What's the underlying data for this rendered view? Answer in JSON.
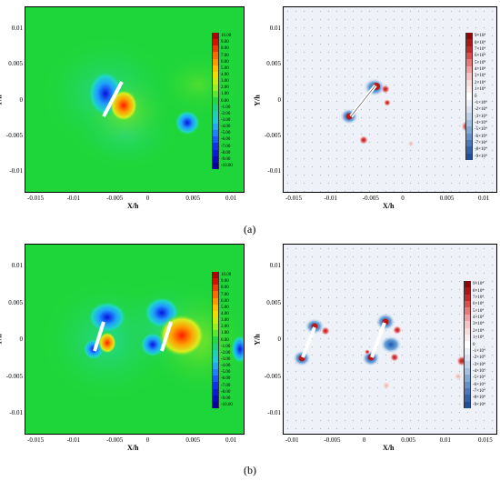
{
  "figure": {
    "captions": [
      "(a)",
      "(b)"
    ],
    "panels": [
      {
        "id": "a-left",
        "xlabel": "X/h",
        "ylabel": "Y/h",
        "xticks": [
          "-0.015",
          "-0.01",
          "-0.005",
          "0",
          "0.005",
          "0.01"
        ],
        "yticks": [
          "0.01",
          "0.005",
          "0",
          "-0.005",
          "-0.01"
        ],
        "legend": [
          "10.00",
          "9.00",
          "8.00",
          "7.00",
          "6.00",
          "5.00",
          "4.00",
          "3.00",
          "2.00",
          "1.00",
          "0.00",
          "-1.00",
          "-2.00",
          "-3.00",
          "-4.00",
          "-5.00",
          "-6.00",
          "-7.00",
          "-8.00",
          "-9.00",
          "-10.00"
        ]
      },
      {
        "id": "a-right",
        "xlabel": "X/h",
        "ylabel": "Y/h",
        "xticks": [
          "-0.015",
          "-0.01",
          "-0.005",
          "0",
          "0.005",
          "0.01"
        ],
        "yticks": [
          "0.01",
          "0.005",
          "0",
          "-0.005",
          "-0.01"
        ],
        "legend": [
          "9×10⁴",
          "8×10⁴",
          "7×10⁴",
          "6×10⁴",
          "5×10⁴",
          "4×10⁴",
          "3×10⁴",
          "2×10⁴",
          "1×10⁴",
          "0",
          "-1×10⁴",
          "-2×10⁴",
          "-3×10⁴",
          "-4×10⁴",
          "-5×10⁴",
          "-6×10⁴",
          "-7×10⁴",
          "-8×10⁴",
          "-9×10⁴"
        ]
      },
      {
        "id": "b-left",
        "xlabel": "X/h",
        "ylabel": "Y/h",
        "xticks": [
          "-0.015",
          "-0.01",
          "-0.005",
          "0",
          "0.005",
          "0.01"
        ],
        "yticks": [
          "0.01",
          "0.005",
          "0",
          "-0.005",
          "-0.01"
        ],
        "legend": [
          "10.00",
          "9.00",
          "8.00",
          "7.00",
          "6.00",
          "5.00",
          "4.00",
          "3.00",
          "2.00",
          "1.00",
          "0.00",
          "-1.00",
          "-2.00",
          "-3.00",
          "-4.00",
          "-5.00",
          "-6.00",
          "-7.00",
          "-8.00",
          "-9.00",
          "-10.00"
        ]
      },
      {
        "id": "b-right",
        "xlabel": "X/h",
        "ylabel": "Y/h",
        "xticks": [
          "-0.01",
          "-0.005",
          "0",
          "0.005",
          "0.01",
          "0.015"
        ],
        "yticks": [
          "0.01",
          "0.005",
          "0",
          "-0.005",
          "-0.01"
        ],
        "legend": [
          "9×10⁴",
          "8×10⁴",
          "7×10⁴",
          "6×10⁴",
          "5×10⁴",
          "4×10⁴",
          "3×10⁴",
          "2×10⁴",
          "1×10⁴",
          "0",
          "-1×10⁴",
          "-2×10⁴",
          "-3×10⁴",
          "-4×10⁴",
          "-5×10⁴",
          "-6×10⁴",
          "-7×10⁴",
          "-8×10⁴",
          "-9×10⁴"
        ]
      }
    ],
    "colors": {
      "green_background": "#1fd63a",
      "pale_background": "#eef2f8"
    }
  }
}
